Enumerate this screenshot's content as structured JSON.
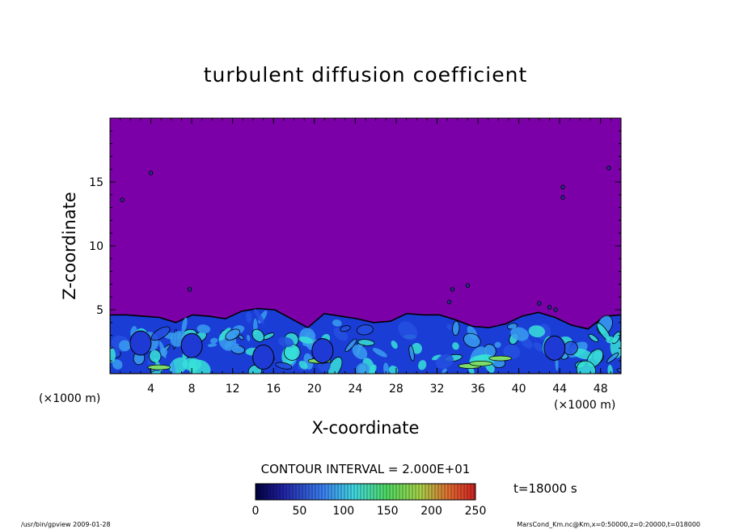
{
  "chart_data": {
    "type": "heatmap",
    "title": "turbulent diffusion coefficient",
    "xlabel": "X-coordinate",
    "ylabel": "Z-coordinate",
    "x_unit": "(×1000 m)",
    "x_unit_right": "(×1000 m)",
    "xlim": [
      0,
      50
    ],
    "ylim": [
      0,
      20
    ],
    "xticks": [
      4,
      8,
      12,
      16,
      20,
      24,
      28,
      32,
      36,
      40,
      44,
      48
    ],
    "yticks": [
      5,
      10,
      15
    ],
    "contour_interval_label": "CONTOUR INTERVAL = 2.000E+01",
    "time_label": "t=18000 s",
    "colorbar": {
      "min": 0,
      "max": 250,
      "ticks": [
        0,
        50,
        100,
        150,
        200,
        250
      ]
    },
    "background_value": 0,
    "mixed_layer_top": [
      4.6,
      4.6,
      4.5,
      4.4,
      4.0,
      4.6,
      4.5,
      4.3,
      4.9,
      5.1,
      5.0,
      4.3,
      3.6,
      4.7,
      4.5,
      4.3,
      4.0,
      4.1,
      4.7,
      4.6,
      4.6,
      4.2,
      3.7,
      3.6,
      3.9,
      4.5,
      4.8,
      4.4,
      3.8,
      3.5,
      4.5,
      4.6
    ],
    "colors": {
      "background": "#7b00a8",
      "low": "#1a3dd6",
      "mid": "#3a9cf0",
      "high": "#37e0d8",
      "peak": "#7ddc6a"
    }
  },
  "footer": {
    "left": "/usr/bin/gpview  2009-01-28",
    "right": "MarsCond_Km.nc@Km,x=0:50000,z=0:20000,t=018000"
  }
}
